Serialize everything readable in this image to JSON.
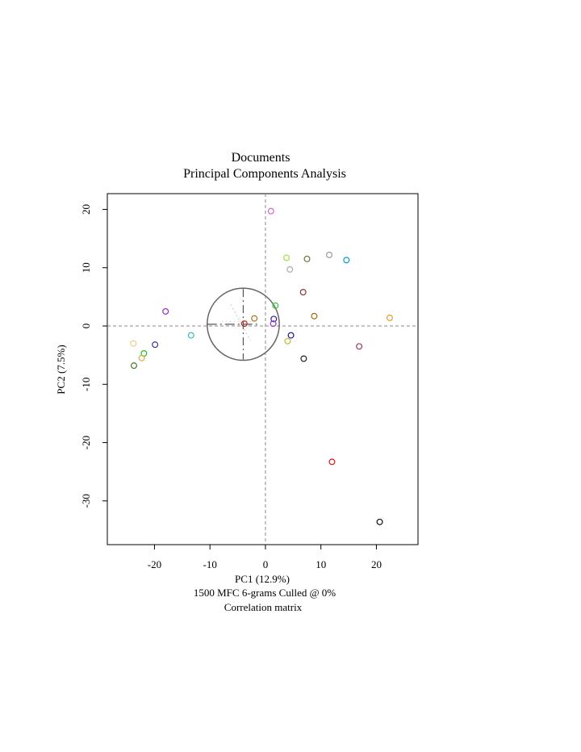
{
  "chart_data": {
    "type": "scatter",
    "title": "Documents",
    "subtitle": "Principal Components Analysis",
    "xlabel": "PC1 (12.9%)",
    "ylabel": "PC2 (7.5%)",
    "caption_lines": [
      "1500 MFC 6-grams Culled @ 0%",
      "Correlation matrix"
    ],
    "xlim": [
      -28.5,
      27.5
    ],
    "ylim": [
      -37.5,
      22.7
    ],
    "x_ticks": [
      -20,
      -10,
      0,
      10,
      20
    ],
    "x_tick_labels": [
      "-20",
      "-10",
      "0",
      "10",
      "20"
    ],
    "y_ticks": [
      20,
      10,
      0,
      -10,
      -20,
      -30
    ],
    "y_tick_labels": [
      "20",
      "10",
      "0",
      "-10",
      "-20",
      "-30"
    ],
    "grid": false,
    "legend": "none",
    "reference_lines": {
      "x": 0,
      "y": 0
    },
    "loadings_circle": {
      "cx": -4,
      "cy": 0.3,
      "r": 6.5,
      "label": ""
    },
    "points": [
      {
        "x": 1.0,
        "y": 19.7,
        "color": "#cc66cc"
      },
      {
        "x": 3.8,
        "y": 11.7,
        "color": "#aadd44"
      },
      {
        "x": 7.5,
        "y": 11.5,
        "color": "#667733"
      },
      {
        "x": 11.5,
        "y": 12.2,
        "color": "#999999"
      },
      {
        "x": 14.6,
        "y": 11.3,
        "color": "#1199cc"
      },
      {
        "x": 4.4,
        "y": 9.7,
        "color": "#aaaaaa"
      },
      {
        "x": 6.8,
        "y": 5.8,
        "color": "#883333"
      },
      {
        "x": 1.8,
        "y": 3.5,
        "color": "#33cc33"
      },
      {
        "x": -18.0,
        "y": 2.5,
        "color": "#9922cc"
      },
      {
        "x": -2.0,
        "y": 1.3,
        "color": "#aa7722"
      },
      {
        "x": 1.5,
        "y": 1.2,
        "color": "#2222aa"
      },
      {
        "x": 1.4,
        "y": 0.4,
        "color": "#9933dd"
      },
      {
        "x": 8.8,
        "y": 1.7,
        "color": "#aa6611"
      },
      {
        "x": 22.4,
        "y": 1.4,
        "color": "#ee9922"
      },
      {
        "x": -3.8,
        "y": 0.4,
        "color": "#cc2222"
      },
      {
        "x": -13.4,
        "y": -1.6,
        "color": "#33bbbb"
      },
      {
        "x": 4.6,
        "y": -1.6,
        "color": "#111199"
      },
      {
        "x": 4.0,
        "y": -2.6,
        "color": "#bbbb33"
      },
      {
        "x": -19.9,
        "y": -3.2,
        "color": "#3333aa"
      },
      {
        "x": -23.8,
        "y": -3.0,
        "color": "#eecc88"
      },
      {
        "x": 16.9,
        "y": -3.5,
        "color": "#aa3366"
      },
      {
        "x": -21.9,
        "y": -4.7,
        "color": "#22bb22"
      },
      {
        "x": -22.3,
        "y": -5.5,
        "color": "#ddaa44"
      },
      {
        "x": 6.9,
        "y": -5.6,
        "color": "#222222"
      },
      {
        "x": -23.7,
        "y": -6.8,
        "color": "#447722"
      },
      {
        "x": 12.0,
        "y": -23.3,
        "color": "#dd1111"
      },
      {
        "x": 20.6,
        "y": -33.6,
        "color": "#111111"
      }
    ]
  }
}
